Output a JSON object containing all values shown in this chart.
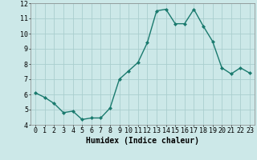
{
  "x": [
    0,
    1,
    2,
    3,
    4,
    5,
    6,
    7,
    8,
    9,
    10,
    11,
    12,
    13,
    14,
    15,
    16,
    17,
    18,
    19,
    20,
    21,
    22,
    23
  ],
  "y": [
    6.1,
    5.8,
    5.4,
    4.8,
    4.9,
    4.35,
    4.45,
    4.45,
    5.1,
    7.0,
    7.55,
    8.1,
    9.4,
    11.5,
    11.6,
    10.65,
    10.65,
    11.6,
    10.5,
    9.5,
    7.75,
    7.35,
    7.75,
    7.4
  ],
  "line_color": "#1a7a6e",
  "marker": "D",
  "marker_size": 2,
  "bg_color": "#cce8e8",
  "grid_color": "#aacece",
  "xlabel": "Humidex (Indice chaleur)",
  "xlim": [
    -0.5,
    23.5
  ],
  "ylim": [
    4.0,
    12.0
  ],
  "yticks": [
    4,
    5,
    6,
    7,
    8,
    9,
    10,
    11,
    12
  ],
  "xticks": [
    0,
    1,
    2,
    3,
    4,
    5,
    6,
    7,
    8,
    9,
    10,
    11,
    12,
    13,
    14,
    15,
    16,
    17,
    18,
    19,
    20,
    21,
    22,
    23
  ],
  "xlabel_fontsize": 7,
  "tick_fontsize": 6,
  "line_width": 1.0
}
